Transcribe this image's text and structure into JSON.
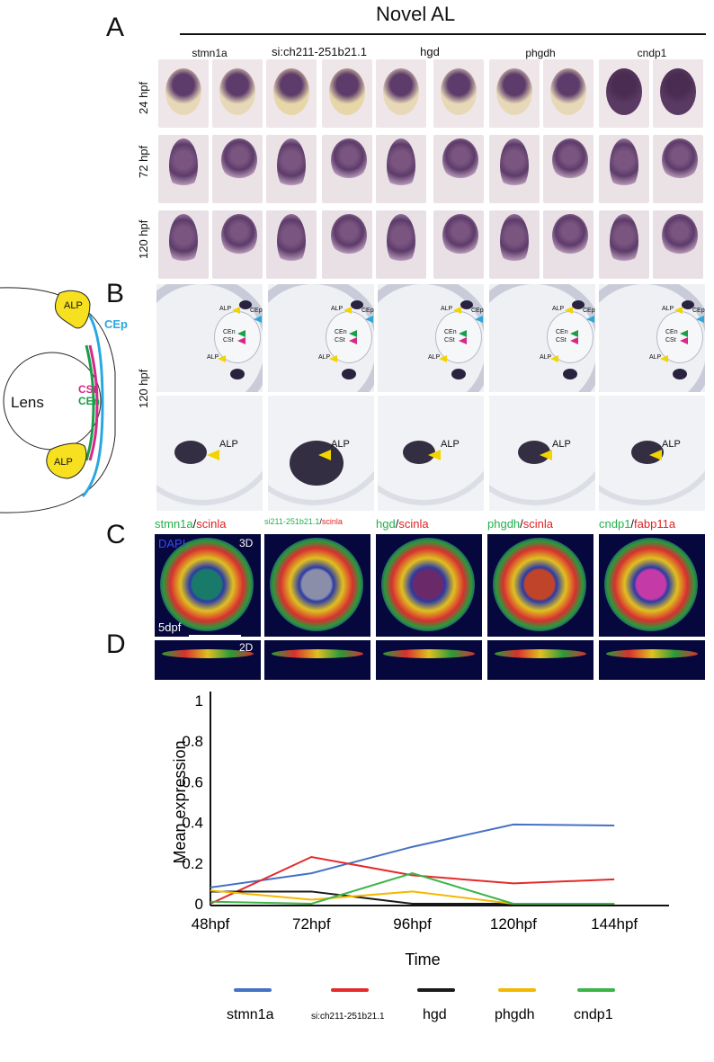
{
  "panels": {
    "A": "A",
    "B": "B",
    "C": "C",
    "D": "D"
  },
  "header": {
    "title": "Novel AL"
  },
  "genes": [
    "stmn1a",
    "si:ch211-251b21.1",
    "hgd",
    "phgdh",
    "cndp1"
  ],
  "timepoints": [
    "24 hpf",
    "72 hpf",
    "120 hpf"
  ],
  "section_time": "120 hpf",
  "schematic": {
    "lens": "Lens",
    "alp_top": "ALP",
    "alp_bottom": "ALP",
    "cep": "CEp",
    "cst": "CSt",
    "cen": "CEn"
  },
  "section_tags": {
    "alp": "ALP",
    "cep": "CEp",
    "cen": "CEn",
    "cst": "CSt"
  },
  "zoom_label": "ALP",
  "fluor": {
    "pairs": [
      {
        "g": "stmn1a",
        "sep": "/",
        "r": "scinla"
      },
      {
        "g": "si211-251b21.1",
        "sep": "/",
        "r": "scinla"
      },
      {
        "g": "hgd",
        "sep": "/",
        "r": "scinla"
      },
      {
        "g": "phgdh",
        "sep": "/",
        "r": "scinla"
      },
      {
        "g": "cndp1",
        "sep": "/",
        "r": "fabp11a"
      }
    ],
    "dapi": "DAPI",
    "label_3d": "3D",
    "label_2d": "2D",
    "stage": "5dpf"
  },
  "colors": {
    "stmn1a": "#4472c4",
    "si": "#e32b2b",
    "hgd": "#1a1a1a",
    "phgdh": "#f5b800",
    "cndp1": "#3cb548"
  },
  "chart_data": {
    "type": "line",
    "categories": [
      "48hpf",
      "72hpf",
      "96hpf",
      "120hpf",
      "144hpf"
    ],
    "ylim": [
      0,
      1
    ],
    "yticks": [
      "0",
      "0.2",
      "0.4",
      "0.6",
      "0.8",
      "1"
    ],
    "ylabel": "Mean expression",
    "xlabel": "Time",
    "series": [
      {
        "name": "stmn1a",
        "values": [
          0.08,
          0.15,
          0.28,
          0.39,
          0.385
        ]
      },
      {
        "name": "si:ch211-251b21.1",
        "values": [
          0.0,
          0.23,
          0.14,
          0.1,
          0.12
        ]
      },
      {
        "name": "hgd",
        "values": [
          0.06,
          0.06,
          0.0,
          0.0,
          0.0
        ]
      },
      {
        "name": "phgdh",
        "values": [
          0.065,
          0.02,
          0.06,
          0.0,
          0.0
        ]
      },
      {
        "name": "cndp1",
        "values": [
          0.01,
          0.0,
          0.15,
          0.0,
          0.0
        ]
      }
    ]
  }
}
